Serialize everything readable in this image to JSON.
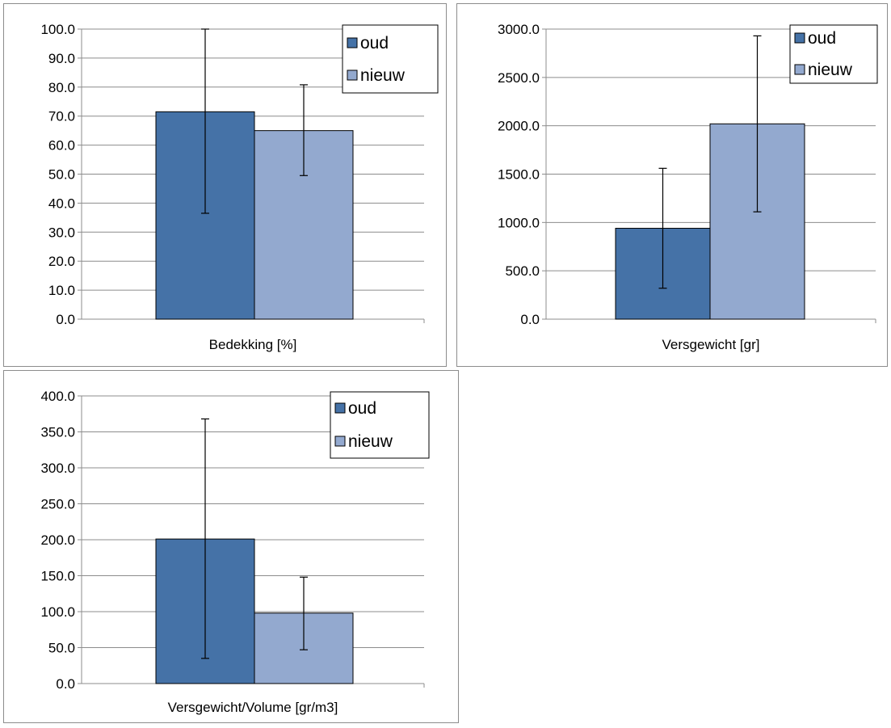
{
  "colors": {
    "oud": "#4572a7",
    "nieuw": "#93a9cf",
    "grid": "#8c8c8c",
    "errorbar": "#000000"
  },
  "chart_data": [
    {
      "type": "bar",
      "categories": [
        "Bedekking [%]"
      ],
      "xlabel": "Bedekking [%]",
      "ylim": [
        0,
        100
      ],
      "yticks": [
        "0.0",
        "10.0",
        "20.0",
        "30.0",
        "40.0",
        "50.0",
        "60.0",
        "70.0",
        "80.0",
        "90.0",
        "100.0"
      ],
      "legend": "top-right",
      "grid": true,
      "series": [
        {
          "name": "oud",
          "values": [
            71.5
          ],
          "error_low": [
            36.5
          ],
          "error_high": [
            100
          ]
        },
        {
          "name": "nieuw",
          "values": [
            65.0
          ],
          "error_low": [
            49.5
          ],
          "error_high": [
            80.8
          ]
        }
      ]
    },
    {
      "type": "bar",
      "categories": [
        "Versgewicht [gr]"
      ],
      "xlabel": "Versgewicht [gr]",
      "ylim": [
        0,
        3000
      ],
      "yticks": [
        "0.0",
        "500.0",
        "1000.0",
        "1500.0",
        "2000.0",
        "2500.0",
        "3000.0"
      ],
      "legend": "top-right",
      "grid": true,
      "series": [
        {
          "name": "oud",
          "values": [
            940
          ],
          "error_low": [
            320
          ],
          "error_high": [
            1560
          ]
        },
        {
          "name": "nieuw",
          "values": [
            2020
          ],
          "error_low": [
            1110
          ],
          "error_high": [
            2930
          ]
        }
      ]
    },
    {
      "type": "bar",
      "categories": [
        "Versgewicht/Volume [gr/m3]"
      ],
      "xlabel": "Versgewicht/Volume [gr/m3]",
      "ylim": [
        0,
        400
      ],
      "yticks": [
        "0.0",
        "50.0",
        "100.0",
        "150.0",
        "200.0",
        "250.0",
        "300.0",
        "350.0",
        "400.0"
      ],
      "legend": "top-right",
      "grid": true,
      "series": [
        {
          "name": "oud",
          "values": [
            201
          ],
          "error_low": [
            35
          ],
          "error_high": [
            368
          ]
        },
        {
          "name": "nieuw",
          "values": [
            98
          ],
          "error_low": [
            47
          ],
          "error_high": [
            148
          ]
        }
      ]
    }
  ]
}
